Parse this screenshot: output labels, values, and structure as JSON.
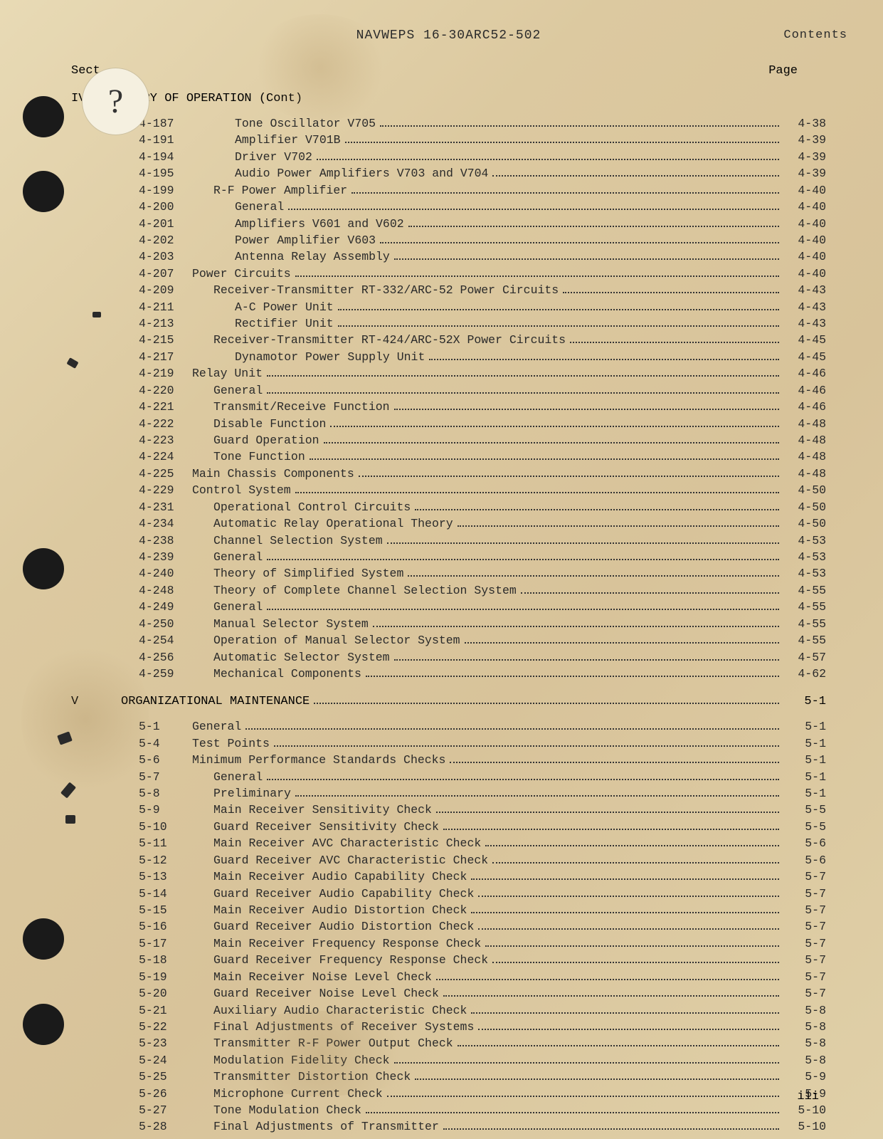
{
  "doc_header": "NAVWEPS 16-30ARC52-502",
  "contents_label": "Contents",
  "col_left": "Sect",
  "col_right": "Page",
  "sticker_mark": "?",
  "footer_page": "iii",
  "sections": [
    {
      "num": "IV",
      "title": "…EORY OF OPERATION (Cont)",
      "page": "",
      "entries": [
        {
          "para": "4-187",
          "title": "Tone Oscillator V705",
          "page": "4-38",
          "indent": 2
        },
        {
          "para": "4-191",
          "title": "Amplifier V701B",
          "page": "4-39",
          "indent": 2
        },
        {
          "para": "4-194",
          "title": "Driver V702",
          "page": "4-39",
          "indent": 2
        },
        {
          "para": "4-195",
          "title": "Audio Power Amplifiers V703 and V704",
          "page": "4-39",
          "indent": 2
        },
        {
          "para": "4-199",
          "title": "R-F Power Amplifier",
          "page": "4-40",
          "indent": 1
        },
        {
          "para": "4-200",
          "title": "General",
          "page": "4-40",
          "indent": 2
        },
        {
          "para": "4-201",
          "title": "Amplifiers V601 and V602",
          "page": "4-40",
          "indent": 2
        },
        {
          "para": "4-202",
          "title": "Power Amplifier V603",
          "page": "4-40",
          "indent": 2
        },
        {
          "para": "4-203",
          "title": "Antenna Relay Assembly",
          "page": "4-40",
          "indent": 2
        },
        {
          "para": "4-207",
          "title": "Power Circuits",
          "page": "4-40",
          "indent": 0
        },
        {
          "para": "4-209",
          "title": "Receiver-Transmitter RT-332/ARC-52 Power Circuits",
          "page": "4-43",
          "indent": 1
        },
        {
          "para": "4-211",
          "title": "A-C Power Unit",
          "page": "4-43",
          "indent": 2
        },
        {
          "para": "4-213",
          "title": "Rectifier Unit",
          "page": "4-43",
          "indent": 2
        },
        {
          "para": "4-215",
          "title": "Receiver-Transmitter RT-424/ARC-52X Power Circuits",
          "page": "4-45",
          "indent": 1
        },
        {
          "para": "4-217",
          "title": "Dynamotor Power Supply Unit",
          "page": "4-45",
          "indent": 2
        },
        {
          "para": "4-219",
          "title": "Relay Unit",
          "page": "4-46",
          "indent": 0
        },
        {
          "para": "4-220",
          "title": "General",
          "page": "4-46",
          "indent": 1
        },
        {
          "para": "4-221",
          "title": "Transmit/Receive Function",
          "page": "4-46",
          "indent": 1
        },
        {
          "para": "4-222",
          "title": "Disable Function",
          "page": "4-48",
          "indent": 1
        },
        {
          "para": "4-223",
          "title": "Guard Operation",
          "page": "4-48",
          "indent": 1
        },
        {
          "para": "4-224",
          "title": "Tone Function",
          "page": "4-48",
          "indent": 1
        },
        {
          "para": "4-225",
          "title": "Main Chassis Components",
          "page": "4-48",
          "indent": 0
        },
        {
          "para": "4-229",
          "title": "Control System",
          "page": "4-50",
          "indent": 0
        },
        {
          "para": "4-231",
          "title": "Operational Control Circuits",
          "page": "4-50",
          "indent": 1
        },
        {
          "para": "4-234",
          "title": "Automatic Relay Operational Theory",
          "page": "4-50",
          "indent": 1
        },
        {
          "para": "4-238",
          "title": "Channel Selection System",
          "page": "4-53",
          "indent": 1
        },
        {
          "para": "4-239",
          "title": "General",
          "page": "4-53",
          "indent": 1
        },
        {
          "para": "4-240",
          "title": "Theory of Simplified System",
          "page": "4-53",
          "indent": 1
        },
        {
          "para": "4-248",
          "title": "Theory of Complete Channel Selection System",
          "page": "4-55",
          "indent": 1
        },
        {
          "para": "4-249",
          "title": "General",
          "page": "4-55",
          "indent": 1
        },
        {
          "para": "4-250",
          "title": "Manual Selector System",
          "page": "4-55",
          "indent": 1
        },
        {
          "para": "4-254",
          "title": "Operation of Manual Selector System",
          "page": "4-55",
          "indent": 1
        },
        {
          "para": "4-256",
          "title": "Automatic Selector System",
          "page": "4-57",
          "indent": 1
        },
        {
          "para": "4-259",
          "title": "Mechanical Components",
          "page": "4-62",
          "indent": 1
        }
      ]
    },
    {
      "num": "V",
      "title": "ORGANIZATIONAL MAINTENANCE",
      "page": "5-1",
      "entries": [
        {
          "para": "5-1",
          "title": "General",
          "page": "5-1",
          "indent": 0
        },
        {
          "para": "5-4",
          "title": "Test Points",
          "page": "5-1",
          "indent": 0
        },
        {
          "para": "5-6",
          "title": "Minimum Performance Standards Checks",
          "page": "5-1",
          "indent": 0
        },
        {
          "para": "5-7",
          "title": "General",
          "page": "5-1",
          "indent": 1
        },
        {
          "para": "5-8",
          "title": "Preliminary",
          "page": "5-1",
          "indent": 1
        },
        {
          "para": "5-9",
          "title": "Main Receiver Sensitivity Check",
          "page": "5-5",
          "indent": 1
        },
        {
          "para": "5-10",
          "title": "Guard Receiver Sensitivity Check",
          "page": "5-5",
          "indent": 1
        },
        {
          "para": "5-11",
          "title": "Main Receiver AVC Characteristic Check",
          "page": "5-6",
          "indent": 1
        },
        {
          "para": "5-12",
          "title": "Guard Receiver AVC Characteristic Check",
          "page": "5-6",
          "indent": 1
        },
        {
          "para": "5-13",
          "title": "Main Receiver Audio Capability Check",
          "page": "5-7",
          "indent": 1
        },
        {
          "para": "5-14",
          "title": "Guard Receiver Audio Capability Check",
          "page": "5-7",
          "indent": 1
        },
        {
          "para": "5-15",
          "title": "Main Receiver Audio Distortion Check",
          "page": "5-7",
          "indent": 1
        },
        {
          "para": "5-16",
          "title": "Guard Receiver Audio Distortion Check",
          "page": "5-7",
          "indent": 1
        },
        {
          "para": "5-17",
          "title": "Main Receiver Frequency Response Check",
          "page": "5-7",
          "indent": 1
        },
        {
          "para": "5-18",
          "title": "Guard Receiver Frequency Response Check",
          "page": "5-7",
          "indent": 1
        },
        {
          "para": "5-19",
          "title": "Main Receiver Noise Level Check",
          "page": "5-7",
          "indent": 1
        },
        {
          "para": "5-20",
          "title": "Guard Receiver Noise Level Check",
          "page": "5-7",
          "indent": 1
        },
        {
          "para": "5-21",
          "title": "Auxiliary Audio Characteristic Check",
          "page": "5-8",
          "indent": 1
        },
        {
          "para": "5-22",
          "title": "Final Adjustments of Receiver Systems",
          "page": "5-8",
          "indent": 1
        },
        {
          "para": "5-23",
          "title": "Transmitter R-F Power Output Check",
          "page": "5-8",
          "indent": 1
        },
        {
          "para": "5-24",
          "title": "Modulation Fidelity Check",
          "page": "5-8",
          "indent": 1
        },
        {
          "para": "5-25",
          "title": "Transmitter Distortion Check",
          "page": "5-9",
          "indent": 1
        },
        {
          "para": "5-26",
          "title": "Microphone Current Check",
          "page": "5-9",
          "indent": 1
        },
        {
          "para": "5-27",
          "title": "Tone Modulation Check",
          "page": "5-10",
          "indent": 1
        },
        {
          "para": "5-28",
          "title": "Final Adjustments of Transmitter",
          "page": "5-10",
          "indent": 1
        }
      ]
    }
  ]
}
